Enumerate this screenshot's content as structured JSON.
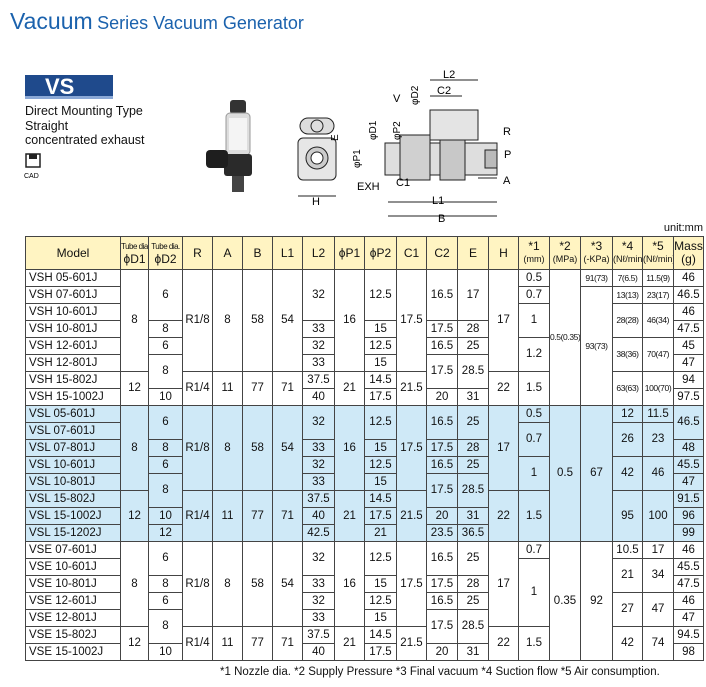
{
  "header": {
    "title_main": "Vacuum",
    "title_rest": "Series Vacuum Generator"
  },
  "badge": "VS",
  "description": [
    "Direct Mounting Type",
    "Straight",
    "concentrated exhaust"
  ],
  "cad": "CAD",
  "diagram": {
    "labels": [
      "L2",
      "C2",
      "V",
      "φD2",
      "φD1",
      "φP2",
      "R",
      "E",
      "φP1",
      "P",
      "EXH",
      "C1",
      "A",
      "H",
      "L1",
      "B"
    ]
  },
  "unit": "unit:mm",
  "table": {
    "header": [
      [
        "Model"
      ],
      [
        "Tube dia.",
        "ϕD1"
      ],
      [
        "Tube dia.",
        "ϕD2"
      ],
      [
        "R"
      ],
      [
        "A"
      ],
      [
        "B"
      ],
      [
        "L1"
      ],
      [
        "L2"
      ],
      [
        "ϕP1"
      ],
      [
        "ϕP2"
      ],
      [
        "C1"
      ],
      [
        "C2"
      ],
      [
        "E"
      ],
      [
        "H"
      ],
      [
        "*1",
        "(mm)"
      ],
      [
        "*2",
        "(MPa)"
      ],
      [
        "*3",
        "(-KPa)"
      ],
      [
        "*4",
        "(Nℓ/min)"
      ],
      [
        "*5",
        "(Nℓ/min)"
      ],
      [
        "Mass",
        "(g)"
      ]
    ],
    "sections": [
      {
        "rows": [
          [
            "VSH 05-601J",
            "8",
            "6",
            "R1/8",
            "8",
            "58",
            "54",
            "32",
            "16",
            "12.5",
            "17.5",
            "16.5",
            "17",
            "17",
            "0.5",
            "0.5(0.35)",
            "91(73)",
            "7(6.5)",
            "11.5(9)",
            "46"
          ],
          [
            "VSH 07-601J",
            "0.7",
            "93(73)",
            "13(13)",
            "23(17)",
            "46.5"
          ],
          [
            "VSH 10-601J",
            "1",
            "28(28)",
            "46(34)",
            "46"
          ],
          [
            "VSH 10-801J",
            "8",
            "33",
            "15",
            "17.5",
            "28",
            "47.5"
          ],
          [
            "VSH 12-601J",
            "6",
            "32",
            "12.5",
            "16.5",
            "25",
            "1.2",
            "38(36)",
            "70(47)",
            "45"
          ],
          [
            "VSH 12-801J",
            "8",
            "33",
            "15",
            "17.5",
            "28.5",
            "47"
          ],
          [
            "VSH 15-802J",
            "12",
            "R1/4",
            "11",
            "77",
            "71",
            "37.5",
            "21",
            "14.5",
            "21.5",
            "22",
            "1.5",
            "63(63)",
            "100(70)",
            "94"
          ],
          [
            "VSH 15-1002J",
            "10",
            "40",
            "17.5",
            "20",
            "31",
            "97.5"
          ]
        ]
      },
      {
        "rows": [
          [
            "VSL 05-601J",
            "8",
            "6",
            "R1/8",
            "8",
            "58",
            "54",
            "32",
            "16",
            "12.5",
            "17.5",
            "16.5",
            "25",
            "17",
            "0.5",
            "0.5",
            "67",
            "12",
            "11.5",
            "46.5"
          ],
          [
            "VSL 07-601J",
            "0.7",
            "26",
            "23"
          ],
          [
            "VSL 07-801J",
            "8",
            "33",
            "15",
            "17.5",
            "28",
            "48"
          ],
          [
            "VSL 10-601J",
            "6",
            "32",
            "12.5",
            "16.5",
            "25",
            "1",
            "42",
            "46",
            "45.5"
          ],
          [
            "VSL 10-801J",
            "8",
            "33",
            "15",
            "17.5",
            "28.5",
            "47"
          ],
          [
            "VSL 15-802J",
            "12",
            "R1/4",
            "11",
            "77",
            "71",
            "37.5",
            "21",
            "14.5",
            "21.5",
            "22",
            "1.5",
            "95",
            "100",
            "91.5"
          ],
          [
            "VSL 15-1002J",
            "10",
            "40",
            "17.5",
            "20",
            "31",
            "96"
          ],
          [
            "VSL 15-1202J",
            "12",
            "42.5",
            "21",
            "23.5",
            "36.5",
            "99"
          ]
        ]
      },
      {
        "rows": [
          [
            "VSE 07-601J",
            "8",
            "6",
            "R1/8",
            "8",
            "58",
            "54",
            "32",
            "16",
            "12.5",
            "17.5",
            "16.5",
            "25",
            "17",
            "0.7",
            "0.35",
            "92",
            "10.5",
            "17",
            "46"
          ],
          [
            "VSE 10-601J",
            "1",
            "21",
            "34",
            "45.5"
          ],
          [
            "VSE 10-801J",
            "8",
            "33",
            "15",
            "17.5",
            "28",
            "47.5"
          ],
          [
            "VSE 12-601J",
            "6",
            "32",
            "12.5",
            "16.5",
            "25",
            "27",
            "47",
            "46"
          ],
          [
            "VSE 12-801J",
            "8",
            "33",
            "15",
            "17.5",
            "28.5",
            "47"
          ],
          [
            "VSE 15-802J",
            "12",
            "R1/4",
            "11",
            "77",
            "71",
            "37.5",
            "21",
            "14.5",
            "21.5",
            "22",
            "1.5",
            "42",
            "74",
            "94.5"
          ],
          [
            "VSE 15-1002J",
            "10",
            "40",
            "17.5",
            "20",
            "31",
            "98"
          ]
        ]
      }
    ]
  },
  "footnote": "*1 Nozzle dia. *2 Supply Pressure *3 Final vacuum *4 Suction flow *5 Air consumption."
}
